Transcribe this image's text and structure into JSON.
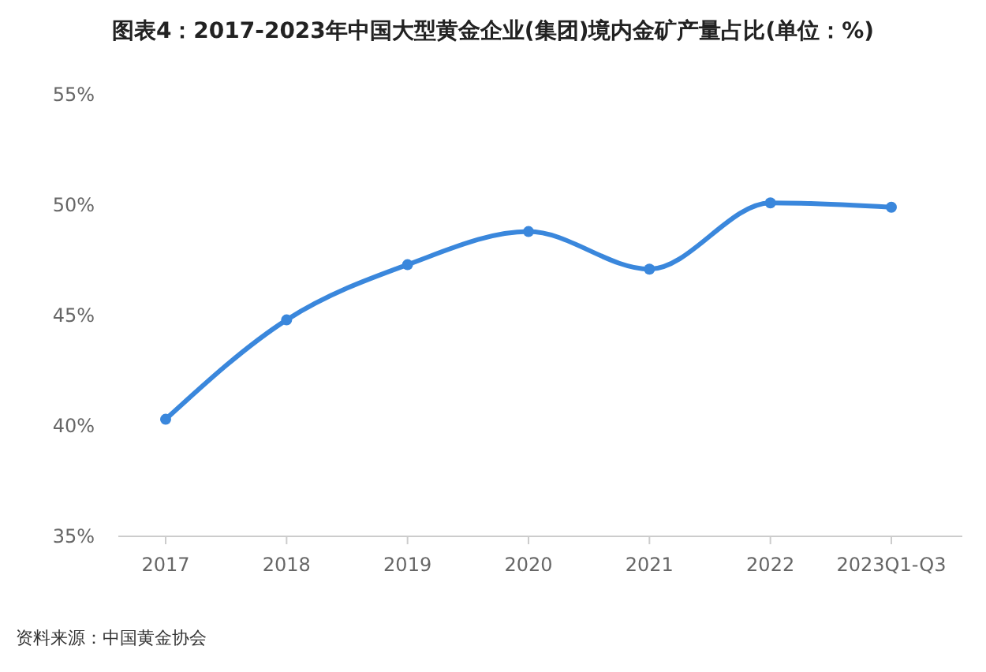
{
  "chart_data": {
    "type": "line",
    "title": "图表4：2017-2023年中国大型黄金企业(集团)境内金矿产量占比(单位：%)",
    "categories": [
      "2017",
      "2018",
      "2019",
      "2020",
      "2021",
      "2022",
      "2023Q1-Q3"
    ],
    "series": [
      {
        "color": "#3a87dc",
        "values": [
          40.3,
          44.8,
          47.3,
          48.8,
          47.1,
          50.1,
          49.9
        ]
      }
    ],
    "ylim": [
      35,
      55
    ],
    "yticks": [
      {
        "value": 35,
        "label": "35%"
      },
      {
        "value": 40,
        "label": "40%"
      },
      {
        "value": 45,
        "label": "45%"
      },
      {
        "value": 50,
        "label": "50%"
      },
      {
        "value": 55,
        "label": "55%"
      }
    ],
    "grid": false,
    "marker": "circle",
    "line_style": "solid",
    "annotations": [
      "资料来源：中国黄金协会"
    ]
  }
}
